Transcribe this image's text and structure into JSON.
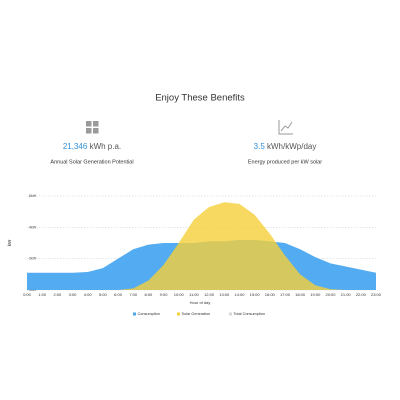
{
  "header": {
    "title": "Enjoy These Benefits"
  },
  "stats": [
    {
      "value": "21,346",
      "unit": "kWh p.a.",
      "label": "Annual Solar Generation Potential"
    },
    {
      "value": "3.5",
      "unit": "kWh/kWp/day",
      "label": "Energy produced per kW solar"
    }
  ],
  "chart_data": {
    "type": "area",
    "ylabel": "kW",
    "xlabel": "Hour of day",
    "categories": [
      "0:00",
      "1:00",
      "2:00",
      "3:00",
      "4:00",
      "5:00",
      "6:00",
      "7:00",
      "8:00",
      "9:00",
      "10:00",
      "11:00",
      "12:00",
      "13:00",
      "14:00",
      "15:00",
      "16:00",
      "17:00",
      "18:00",
      "19:00",
      "20:00",
      "21:00",
      "22:00",
      "23:00"
    ],
    "series": [
      {
        "name": "Consumption",
        "color": "#4aa8f0",
        "values": [
          1.1,
          1.1,
          1.1,
          1.1,
          1.15,
          1.4,
          2.0,
          2.6,
          2.9,
          3.0,
          3.0,
          3.0,
          3.1,
          3.1,
          3.2,
          3.2,
          3.1,
          3.0,
          2.6,
          2.1,
          1.7,
          1.5,
          1.3,
          1.1
        ]
      },
      {
        "name": "Solar Generation",
        "color": "#f5cf3a",
        "values": [
          0,
          0,
          0,
          0,
          0,
          0,
          0,
          0.1,
          0.6,
          1.6,
          3.0,
          4.5,
          5.3,
          5.6,
          5.5,
          4.8,
          3.6,
          2.2,
          1.0,
          0.3,
          0.05,
          0,
          0,
          0
        ]
      },
      {
        "name": "Total Consumption",
        "color": "#d8d8d8",
        "values": [
          null,
          null,
          null,
          null,
          null,
          null,
          null,
          null,
          null,
          null,
          null,
          null,
          null,
          null,
          null,
          null,
          null,
          null,
          null,
          null,
          null,
          null,
          null,
          null
        ]
      }
    ],
    "ylim": [
      0,
      6
    ],
    "yticks": [
      {
        "value": 0,
        "label": "0kW"
      },
      {
        "value": 2,
        "label": "2kW"
      },
      {
        "value": 4,
        "label": "4kW"
      },
      {
        "value": 6,
        "label": "6kW"
      }
    ],
    "grid": true
  }
}
